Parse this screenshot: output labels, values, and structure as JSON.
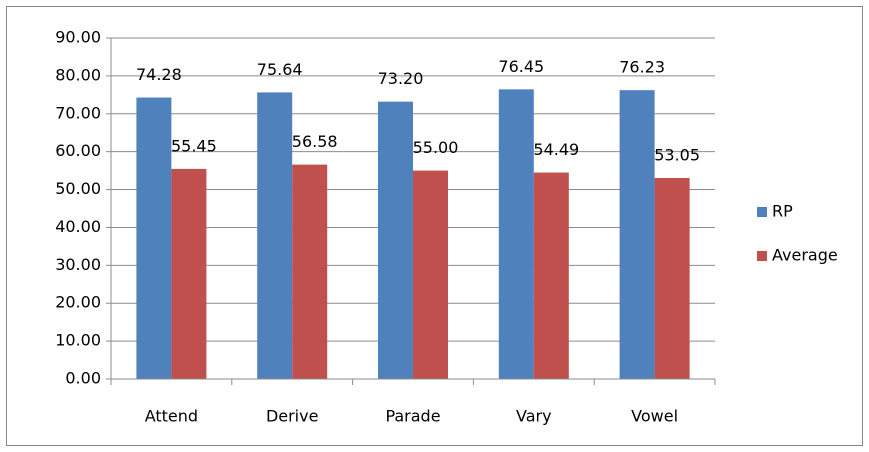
{
  "chart_data": {
    "type": "bar",
    "categories": [
      "Attend",
      "Derive",
      "Parade",
      "Vary",
      "Vowel"
    ],
    "series": [
      {
        "name": "RP",
        "color": "#4f81bd",
        "values": [
          74.28,
          75.64,
          73.2,
          76.45,
          76.23
        ],
        "value_labels": [
          "74.28",
          "75.64",
          "73.20",
          "76.45",
          "76.23"
        ]
      },
      {
        "name": "Average",
        "color": "#c0504d",
        "values": [
          55.45,
          56.58,
          55,
          54.49,
          53.05
        ],
        "value_labels": [
          "55.45",
          "56.58",
          "55.00",
          "54.49",
          "53.05"
        ]
      }
    ],
    "ylim": [
      0,
      90
    ],
    "yticks": [
      {
        "value": 0,
        "label": "0.00"
      },
      {
        "value": 10,
        "label": "10.00"
      },
      {
        "value": 20,
        "label": "20.00"
      },
      {
        "value": 30,
        "label": "30.00"
      },
      {
        "value": 40,
        "label": "40.00"
      },
      {
        "value": 50,
        "label": "50.00"
      },
      {
        "value": 60,
        "label": "60.00"
      },
      {
        "value": 70,
        "label": "70.00"
      },
      {
        "value": 80,
        "label": "80.00"
      },
      {
        "value": 90,
        "label": "90.00"
      }
    ],
    "grid": true,
    "legend": "right"
  }
}
